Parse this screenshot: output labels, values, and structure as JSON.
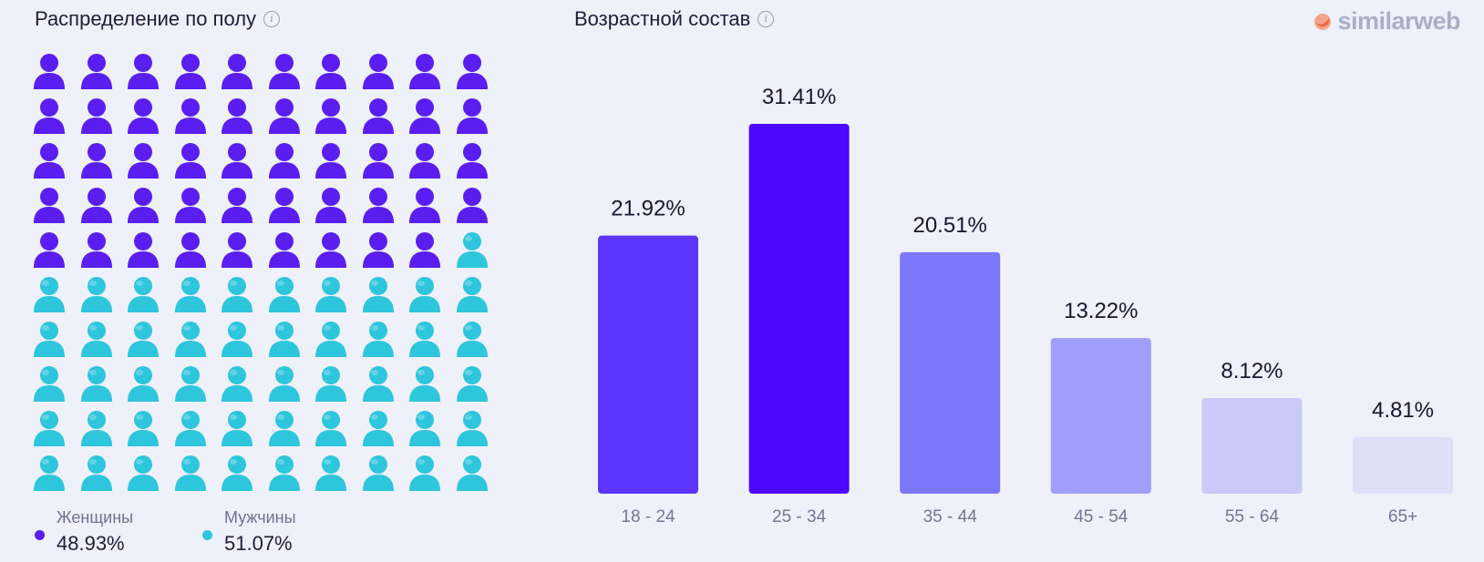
{
  "gender": {
    "title": "Распределение по полу",
    "legend": [
      {
        "label": "Женщины",
        "value": "48.93%",
        "color": "#5b1ef0"
      },
      {
        "label": "Мужчины",
        "value": "51.07%",
        "color": "#2ec6dc"
      }
    ]
  },
  "age": {
    "title": "Возрастной состав"
  },
  "brand": {
    "name": "similarweb"
  },
  "chart_data": [
    {
      "type": "waffle",
      "title": "Распределение по полу",
      "categories": [
        "Женщины",
        "Мужчины"
      ],
      "values": [
        48.93,
        51.07
      ],
      "colors": [
        "#5b1ef0",
        "#2ec6dc"
      ],
      "grid": {
        "rows": 10,
        "cols": 10
      },
      "icons_per_category": [
        49,
        51
      ]
    },
    {
      "type": "bar",
      "title": "Возрастной состав",
      "categories": [
        "18 - 24",
        "25 - 34",
        "35 - 44",
        "45 - 54",
        "55 - 64",
        "65+"
      ],
      "values": [
        21.92,
        31.41,
        20.51,
        13.22,
        8.12,
        4.81
      ],
      "labels": [
        "21.92%",
        "31.41%",
        "20.51%",
        "13.22%",
        "8.12%",
        "4.81%"
      ],
      "colors": [
        "#5e35ff",
        "#4b08fb",
        "#7c76fb",
        "#9f9ffb",
        "#cacaf8",
        "#dfdff7"
      ],
      "ylim": [
        0,
        31.41
      ],
      "grid": false
    }
  ]
}
